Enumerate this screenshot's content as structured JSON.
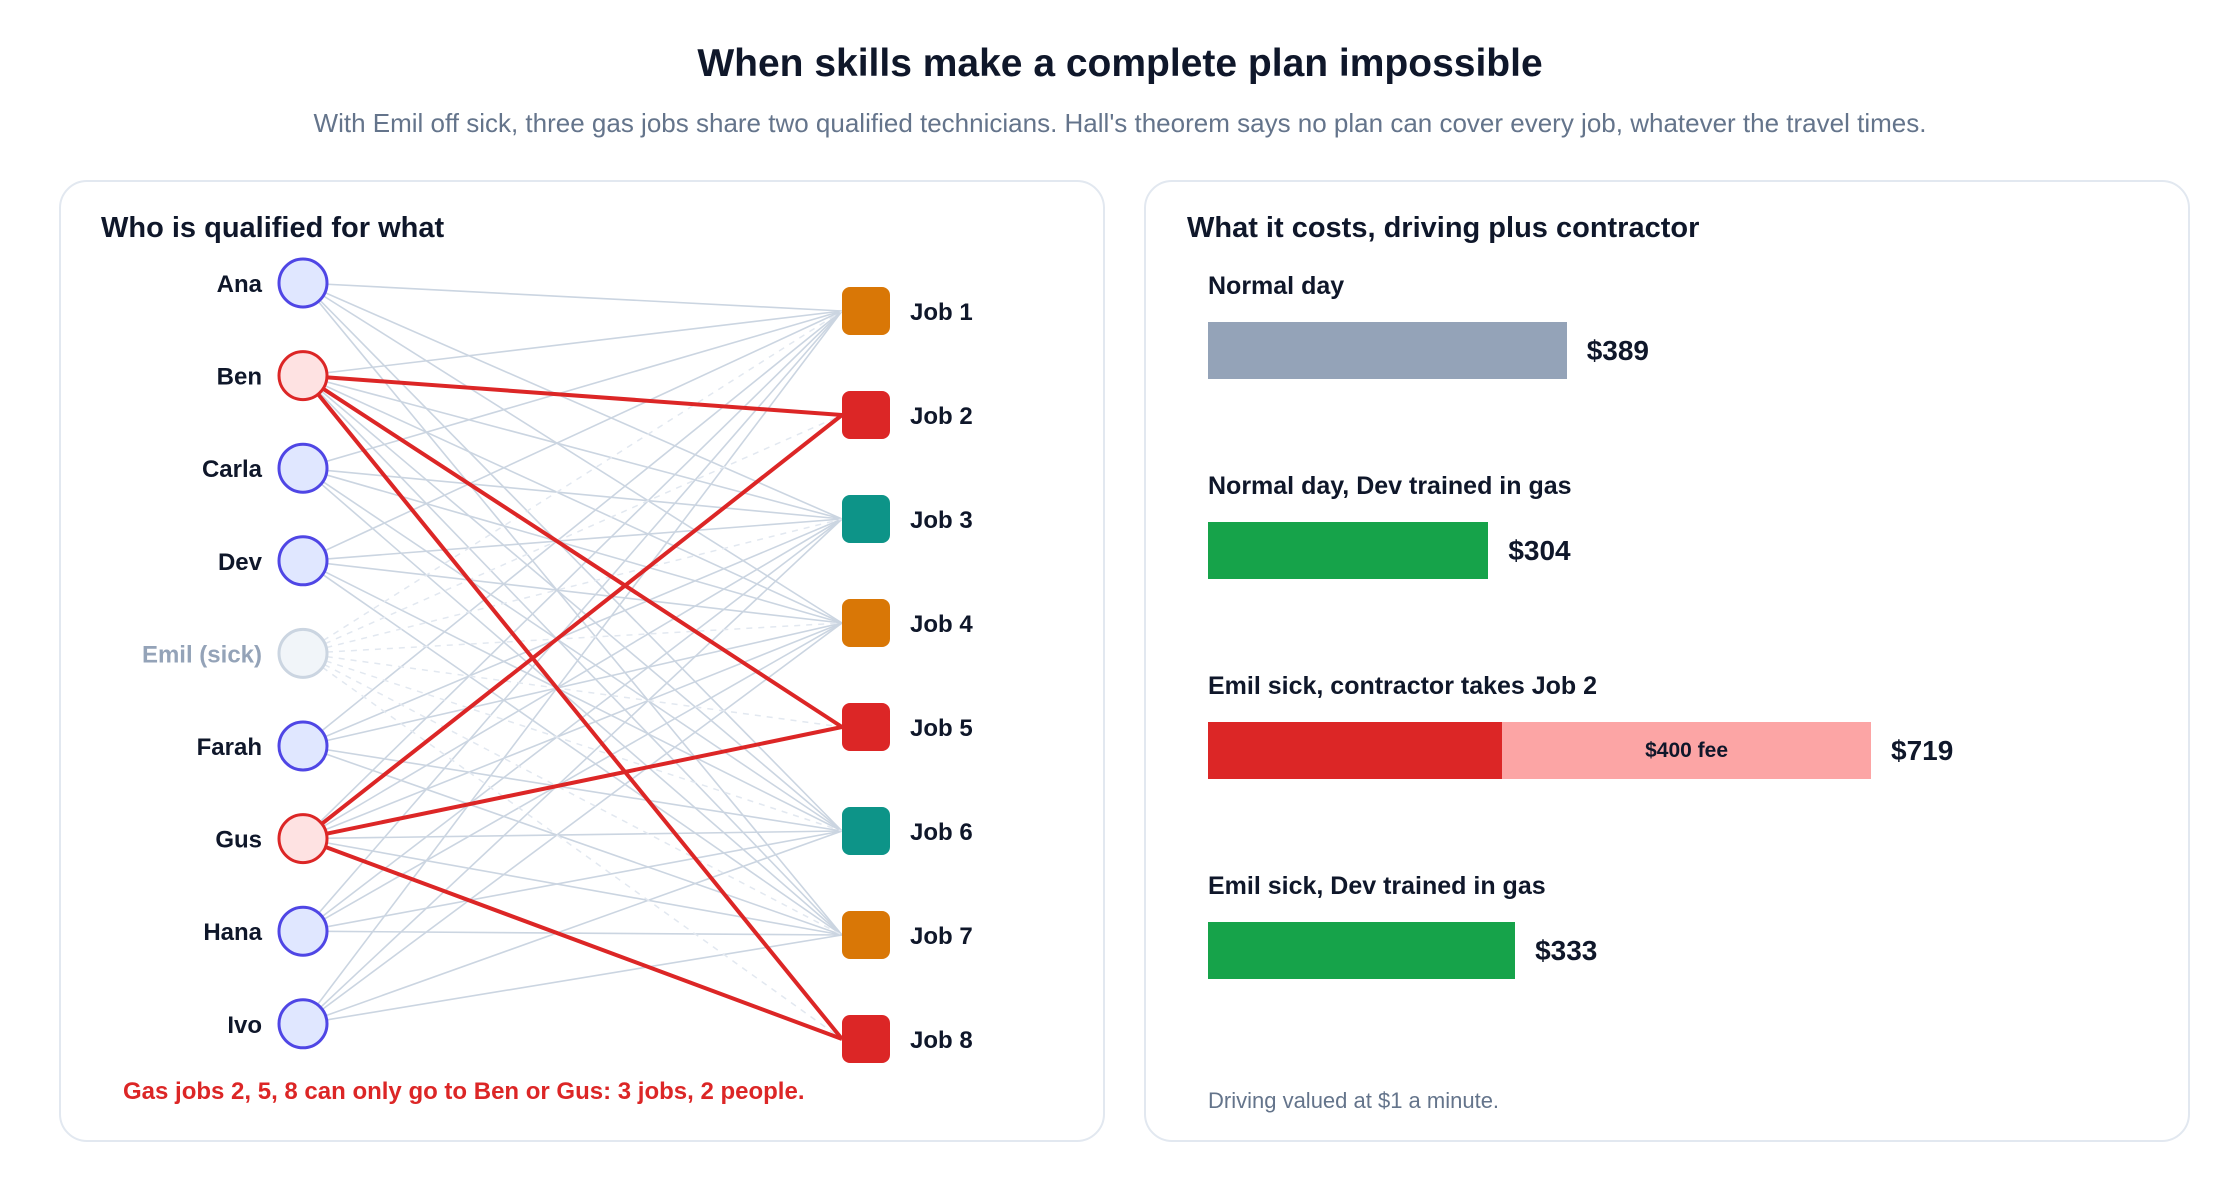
{
  "header": {
    "title": "When skills make a complete plan impossible",
    "subtitle": "With Emil off sick, three gas jobs share two qualified technicians. Hall's theorem says no plan can cover every job, whatever the travel times."
  },
  "left_panel": {
    "title": "Who is qualified for what",
    "technicians": [
      {
        "name": "Ana",
        "status": "normal"
      },
      {
        "name": "Ben",
        "status": "bottleneck"
      },
      {
        "name": "Carla",
        "status": "normal"
      },
      {
        "name": "Dev",
        "status": "normal"
      },
      {
        "name": "Emil (sick)",
        "status": "sick"
      },
      {
        "name": "Farah",
        "status": "normal"
      },
      {
        "name": "Gus",
        "status": "bottleneck"
      },
      {
        "name": "Hana",
        "status": "normal"
      },
      {
        "name": "Ivo",
        "status": "normal"
      }
    ],
    "jobs": [
      {
        "name": "Job 1",
        "type": "orange"
      },
      {
        "name": "Job 2",
        "type": "gas"
      },
      {
        "name": "Job 3",
        "type": "teal"
      },
      {
        "name": "Job 4",
        "type": "orange"
      },
      {
        "name": "Job 5",
        "type": "gas"
      },
      {
        "name": "Job 6",
        "type": "teal"
      },
      {
        "name": "Job 7",
        "type": "orange"
      },
      {
        "name": "Job 8",
        "type": "gas"
      }
    ],
    "qualified_edges": [
      [
        0,
        0
      ],
      [
        0,
        2
      ],
      [
        0,
        3
      ],
      [
        0,
        5
      ],
      [
        0,
        6
      ],
      [
        1,
        0
      ],
      [
        1,
        2
      ],
      [
        1,
        3
      ],
      [
        1,
        5
      ],
      [
        1,
        6
      ],
      [
        2,
        0
      ],
      [
        2,
        2
      ],
      [
        2,
        3
      ],
      [
        2,
        5
      ],
      [
        2,
        6
      ],
      [
        3,
        0
      ],
      [
        3,
        2
      ],
      [
        3,
        3
      ],
      [
        3,
        5
      ],
      [
        3,
        6
      ],
      [
        5,
        0
      ],
      [
        5,
        2
      ],
      [
        5,
        3
      ],
      [
        5,
        5
      ],
      [
        5,
        6
      ],
      [
        6,
        0
      ],
      [
        6,
        2
      ],
      [
        6,
        3
      ],
      [
        6,
        5
      ],
      [
        6,
        6
      ],
      [
        7,
        0
      ],
      [
        7,
        2
      ],
      [
        7,
        3
      ],
      [
        7,
        5
      ],
      [
        7,
        6
      ],
      [
        8,
        0
      ],
      [
        8,
        2
      ],
      [
        8,
        3
      ],
      [
        8,
        5
      ],
      [
        8,
        6
      ]
    ],
    "sick_edges": [
      [
        4,
        0
      ],
      [
        4,
        1
      ],
      [
        4,
        2
      ],
      [
        4,
        3
      ],
      [
        4,
        4
      ],
      [
        4,
        5
      ],
      [
        4,
        6
      ],
      [
        4,
        7
      ]
    ],
    "gas_edges": [
      [
        1,
        1
      ],
      [
        1,
        4
      ],
      [
        1,
        7
      ],
      [
        6,
        1
      ],
      [
        6,
        4
      ],
      [
        6,
        7
      ]
    ],
    "warning": "Gas jobs 2, 5, 8 can only go to Ben or Gus: 3 jobs, 2 people.",
    "colors": {
      "tech_fill": "#e0e7ff",
      "tech_stroke": "#4f46e5",
      "bottleneck_fill": "#fee2e2",
      "bottleneck_stroke": "#dc2626",
      "sick_fill": "#f1f5f9",
      "sick_stroke": "#cbd5e1",
      "gas": "#dc2626",
      "orange": "#d97706",
      "teal": "#0d9488",
      "edge": "#cbd5e1"
    }
  },
  "right_panel": {
    "title": "What it costs, driving plus contractor",
    "max_value": 719,
    "bars": [
      {
        "label": "Normal day",
        "value_label": "$389",
        "segments": [
          {
            "value": 389,
            "color": "#94a3b8",
            "text": ""
          }
        ]
      },
      {
        "label": "Normal day, Dev trained in gas",
        "value_label": "$304",
        "segments": [
          {
            "value": 304,
            "color": "#16a34a",
            "text": ""
          }
        ]
      },
      {
        "label": "Emil sick, contractor takes Job 2",
        "value_label": "$719",
        "segments": [
          {
            "value": 319,
            "color": "#dc2626",
            "text": ""
          },
          {
            "value": 400,
            "color": "#fca5a5",
            "text": "$400 fee"
          }
        ]
      },
      {
        "label": "Emil sick, Dev trained in gas",
        "value_label": "$333",
        "segments": [
          {
            "value": 333,
            "color": "#16a34a",
            "text": ""
          }
        ]
      }
    ],
    "footnote": "Driving valued at $1 a minute."
  }
}
